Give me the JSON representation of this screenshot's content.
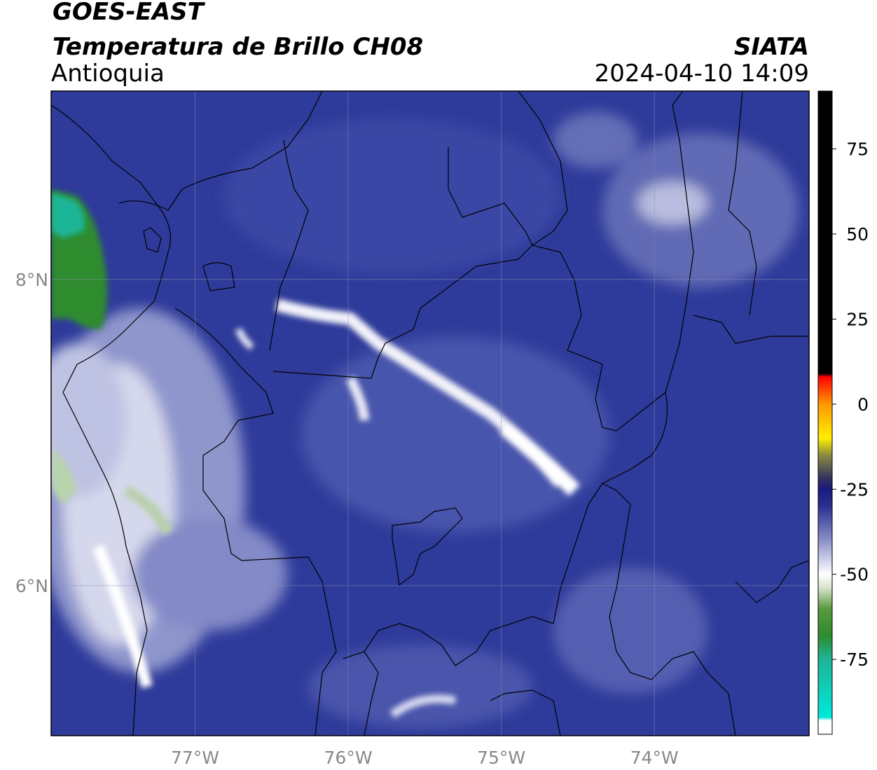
{
  "header": {
    "title": "GOES-EAST",
    "subtitle": "Temperatura de Brillo CH08",
    "region": "Antioquia",
    "source": "SIATA",
    "datetime": "2024-04-10 14:09"
  },
  "map": {
    "xlim": [
      -77.94,
      -72.99
    ],
    "ylim": [
      5.02,
      9.23
    ],
    "xticks": [
      {
        "value": -77,
        "label": "77°W"
      },
      {
        "value": -76,
        "label": "76°W"
      },
      {
        "value": -75,
        "label": "75°W"
      },
      {
        "value": -74,
        "label": "74°W"
      }
    ],
    "yticks": [
      {
        "value": 8,
        "label": "8°N"
      },
      {
        "value": 6,
        "label": "6°N"
      }
    ],
    "grid": true
  },
  "colorbar": {
    "lim": [
      -97,
      92
    ],
    "ticks": [
      75,
      50,
      25,
      0,
      -25,
      -50,
      -75
    ],
    "stops": [
      {
        "value": -97,
        "color": "#ffffff"
      },
      {
        "value": -93,
        "color": "#ffffff"
      },
      {
        "value": -92,
        "color": "#00e8dc"
      },
      {
        "value": -75,
        "color": "#1fb596"
      },
      {
        "value": -68,
        "color": "#2e8b2e"
      },
      {
        "value": -60,
        "color": "#5a9a40"
      },
      {
        "value": -54,
        "color": "#d6e4cc"
      },
      {
        "value": -50,
        "color": "#ffffff"
      },
      {
        "value": -40,
        "color": "#8a90c8"
      },
      {
        "value": -30,
        "color": "#2a3090"
      },
      {
        "value": -25,
        "color": "#1a1a7e"
      },
      {
        "value": -22,
        "color": "#303060"
      },
      {
        "value": -15,
        "color": "#8a8a40"
      },
      {
        "value": -10,
        "color": "#ffee00"
      },
      {
        "value": 0,
        "color": "#ff9900"
      },
      {
        "value": 8,
        "color": "#ff0000"
      },
      {
        "value": 9,
        "color": "#000000"
      },
      {
        "value": 92,
        "color": "#000000"
      }
    ]
  }
}
